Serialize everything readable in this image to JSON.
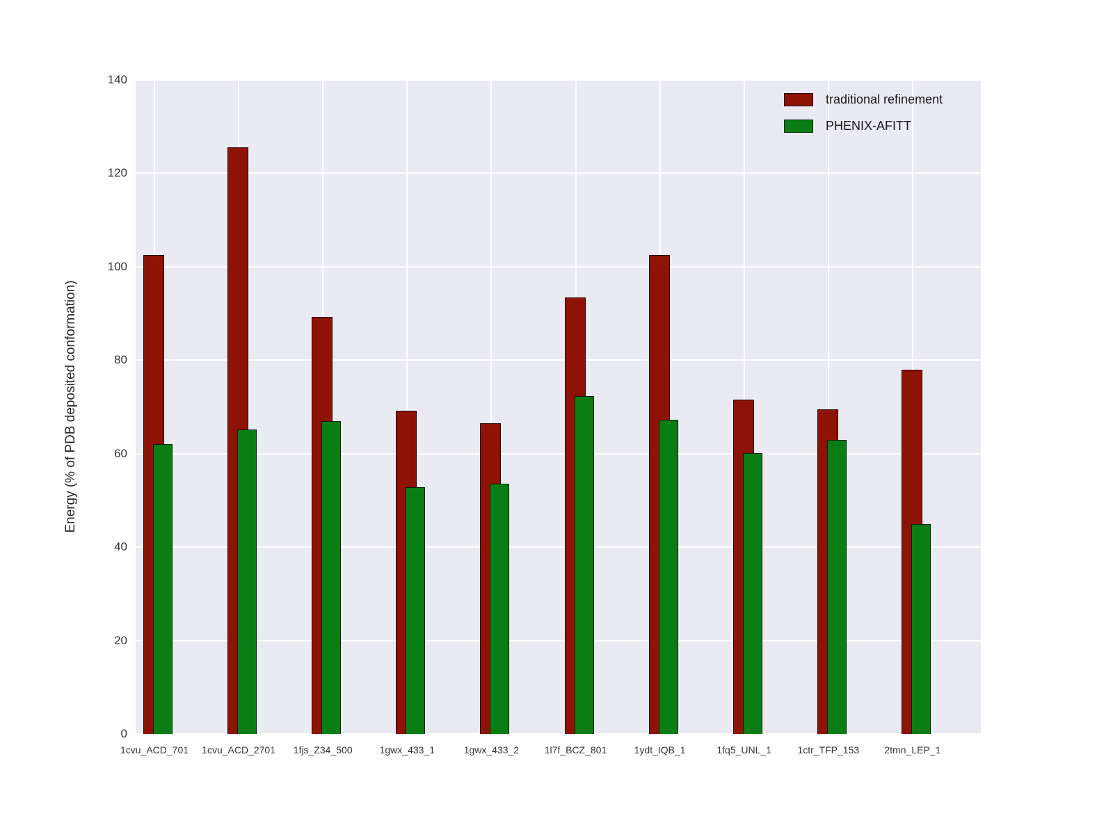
{
  "colors": {
    "plot_background": "#eaeaf2",
    "gridline": "#ffffff",
    "tick_label": "#333333",
    "series_red": "#8e1306",
    "series_green": "#0a7d14"
  },
  "chart_data": {
    "type": "bar",
    "title": "",
    "xlabel": "",
    "ylabel": "Energy (% of PDB deposited conformation)",
    "ylim": [
      0,
      140
    ],
    "yticks": [
      0,
      20,
      40,
      60,
      80,
      100,
      120,
      140
    ],
    "grid": true,
    "legend_position": "upper right",
    "categories": [
      "1cvu_ACD_701",
      "1cvu_ACD_2701",
      "1fjs_Z34_500",
      "1gwx_433_1",
      "1gwx_433_2",
      "1l7f_BCZ_801",
      "1ydt_IQB_1",
      "1fq5_UNL_1",
      "1ctr_TFP_153",
      "2tmn_LEP_1"
    ],
    "series": [
      {
        "name": "traditional refinement",
        "color": "#8e1306",
        "values": [
          102.5,
          125.5,
          89.2,
          69.2,
          66.5,
          93.5,
          102.5,
          71.5,
          69.5,
          78.0
        ]
      },
      {
        "name": "PHENIX-AFITT",
        "color": "#0a7d14",
        "values": [
          62.1,
          65.1,
          67.0,
          52.8,
          53.5,
          72.3,
          67.2,
          60.1,
          62.9,
          45.0
        ]
      }
    ]
  }
}
